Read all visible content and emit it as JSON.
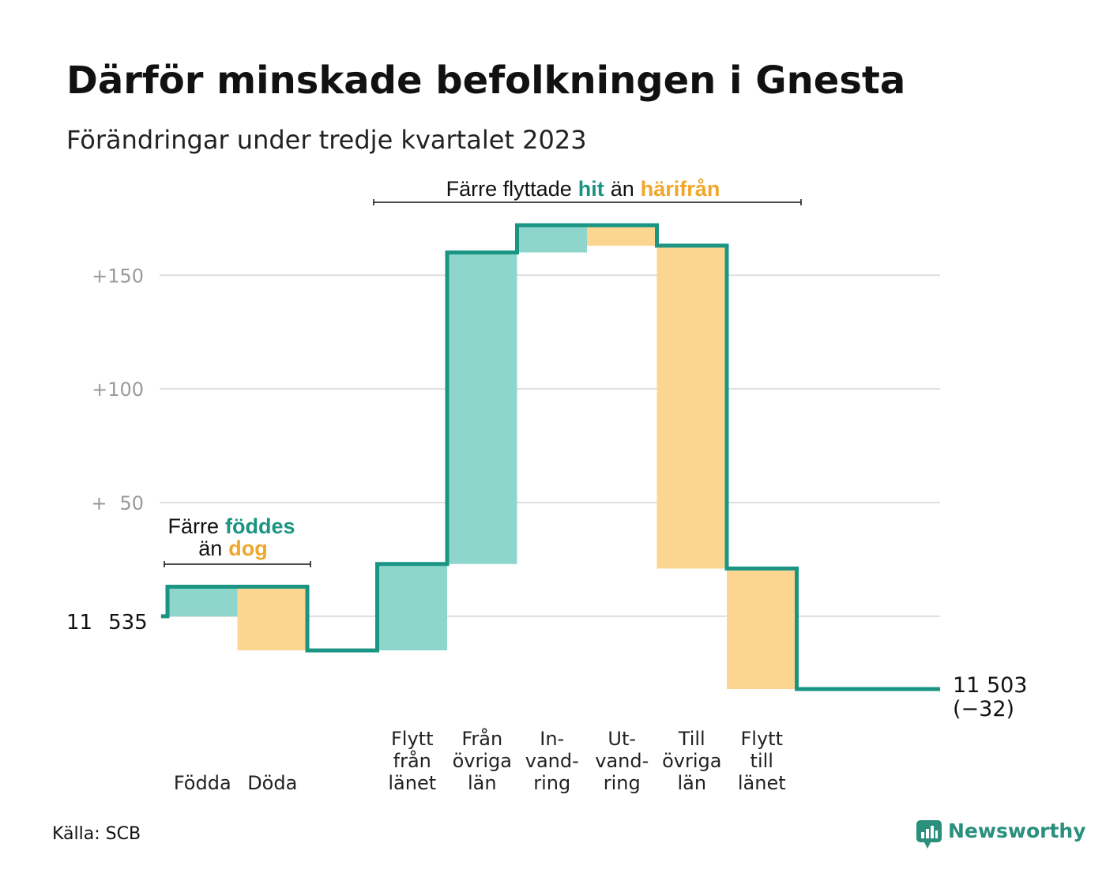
{
  "colors": {
    "increase": "#8ed6cc",
    "decrease": "#fcd590",
    "line": "#1a9583",
    "accent_hit": "#1a9583",
    "accent_away": "#f0a62a",
    "grid": "#dedede",
    "brand": "#2a8f7c"
  },
  "chart_data": {
    "type": "waterfall",
    "title": "Därför minskade befolkningen i Gnesta",
    "subtitle": "Förändringar under tredje kvartalet 2023",
    "start_value": 11535,
    "start_label_parts": [
      "11",
      "535"
    ],
    "end_label": [
      "11 503",
      "(−32)"
    ],
    "ylim": [
      -32,
      172
    ],
    "y_ticks": [
      {
        "value": 50,
        "parts": [
          "+",
          "50"
        ]
      },
      {
        "value": 100,
        "parts": [
          "+100"
        ]
      },
      {
        "value": 150,
        "parts": [
          "+150"
        ]
      }
    ],
    "steps": [
      {
        "label": [
          "Födda"
        ],
        "change": 13,
        "kind": "increase"
      },
      {
        "label": [
          "Döda"
        ],
        "change": -28,
        "kind": "decrease"
      },
      {
        "label": [],
        "change": 0,
        "kind": "none"
      },
      {
        "label": [
          "Flytt",
          "från",
          "länet"
        ],
        "change": 38,
        "kind": "increase"
      },
      {
        "label": [
          "Från",
          "övriga",
          "län"
        ],
        "change": 137,
        "kind": "increase"
      },
      {
        "label": [
          "In-",
          "vand-",
          "ring"
        ],
        "change": 12,
        "kind": "increase"
      },
      {
        "label": [
          "Ut-",
          "vand-",
          "ring"
        ],
        "change": -9,
        "kind": "decrease"
      },
      {
        "label": [
          "Till",
          "övriga",
          "län"
        ],
        "change": -142,
        "kind": "decrease"
      },
      {
        "label": [
          "Flytt",
          "till",
          "länet"
        ],
        "change": -53,
        "kind": "decrease"
      },
      {
        "label": [],
        "change": 0,
        "kind": "none"
      }
    ],
    "annotations": [
      {
        "id": "migration",
        "line1": [
          {
            "text": "Färre flyttade",
            "style": "plain"
          },
          {
            "text": "hit",
            "style": "hit"
          },
          {
            "text": "än",
            "style": "plain"
          },
          {
            "text": "härifrån",
            "style": "away"
          }
        ]
      },
      {
        "id": "births",
        "line1": [
          {
            "text": "Färre",
            "style": "plain"
          },
          {
            "text": "föddes",
            "style": "hit"
          }
        ],
        "line2": [
          {
            "text": "än",
            "style": "plain"
          },
          {
            "text": "dog",
            "style": "away"
          }
        ]
      }
    ]
  },
  "source": "Källa: SCB",
  "brand": {
    "name": "Newsworthy",
    "icon": "newsworthy-logo-icon"
  }
}
